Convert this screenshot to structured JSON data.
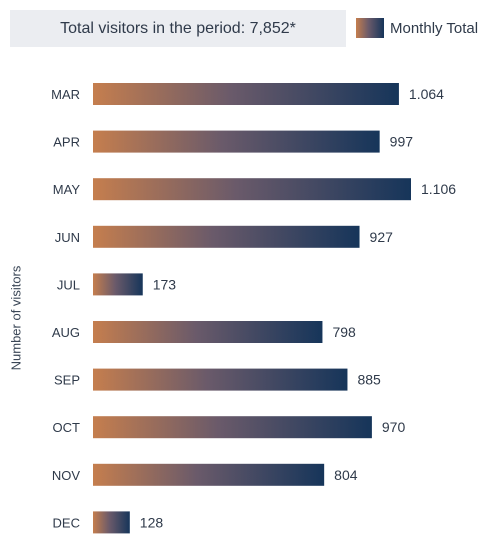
{
  "header": {
    "summary": "Total visitors in the period: 7,852*"
  },
  "legend": {
    "label": "Monthly Total",
    "icon": "gradient-swatch"
  },
  "colors": {
    "bar_start": "#c57e4e",
    "bar_mid": "#6a5a6a",
    "bar_end": "#16355a",
    "text": "#2f3a4a",
    "header_bg": "#ebedf1"
  },
  "chart_data": {
    "type": "bar",
    "orientation": "horizontal",
    "categories": [
      "MAR",
      "APR",
      "MAY",
      "JUN",
      "JUL",
      "AUG",
      "SEP",
      "OCT",
      "NOV",
      "DEC"
    ],
    "values": [
      1064,
      997,
      1106,
      927,
      173,
      798,
      885,
      970,
      804,
      128
    ],
    "value_labels": [
      "1.064",
      "997",
      "1.106",
      "927",
      "173",
      "798",
      "885",
      "970",
      "804",
      "128"
    ],
    "series": [
      {
        "name": "Monthly Total",
        "values": [
          1064,
          997,
          1106,
          927,
          173,
          798,
          885,
          970,
          804,
          128
        ]
      }
    ],
    "title": "",
    "xlabel": "",
    "ylabel": "Number of visitors",
    "xlim": [
      0,
      1106
    ],
    "grid": false,
    "legend_position": "top-right"
  }
}
